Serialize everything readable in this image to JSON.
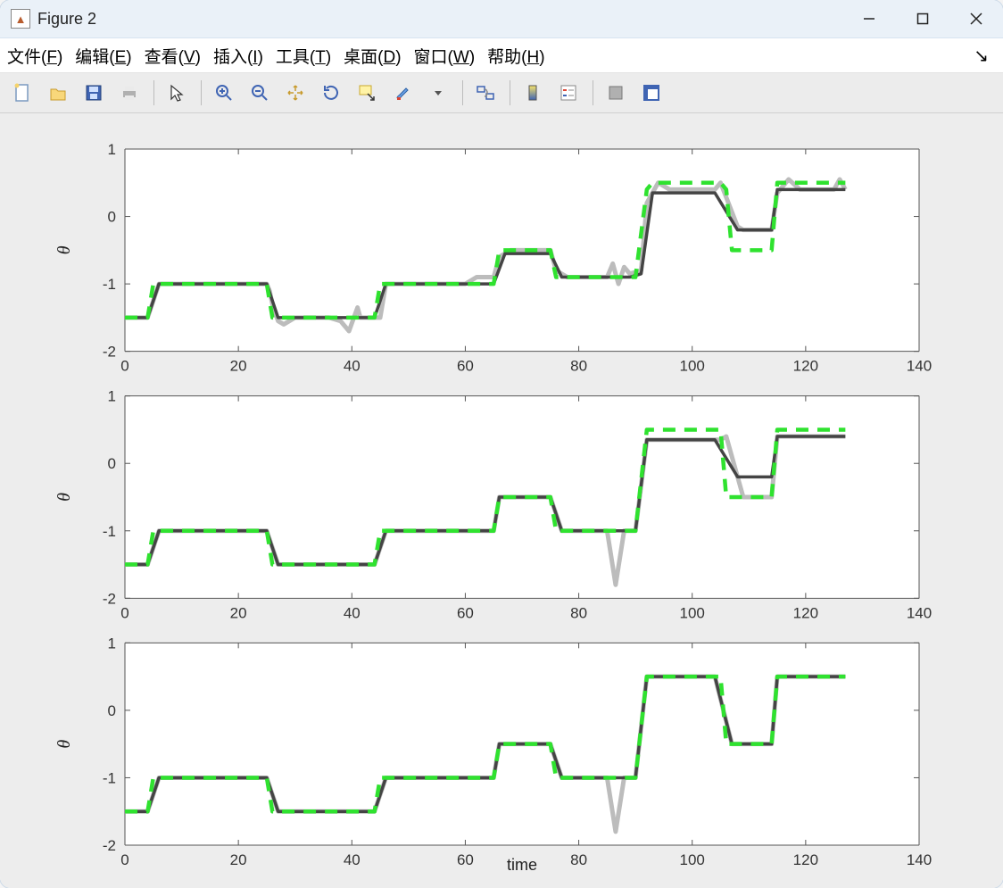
{
  "window": {
    "title": "Figure 2"
  },
  "menu": {
    "file": "文件(F)",
    "edit": "编辑(E)",
    "view": "查看(V)",
    "insert": "插入(I)",
    "tools": "工具(T)",
    "desktop": "桌面(D)",
    "window": "窗口(W)",
    "help": "帮助(H)"
  },
  "toolbar": {
    "new": "new-file-icon",
    "open": "open-folder-icon",
    "save": "save-icon",
    "print": "print-icon",
    "pointer": "pointer-icon",
    "zoomin": "zoom-in-icon",
    "zoomout": "zoom-out-icon",
    "pan": "pan-icon",
    "rotate": "rotate-icon",
    "datacursor": "data-cursor-icon",
    "brush": "brush-icon",
    "link": "link-icon",
    "colorbar": "colorbar-icon",
    "legend": "legend-icon",
    "dock": "dock-icon",
    "undock": "undock-icon"
  },
  "plot": {
    "xlabel": "time",
    "ylabel": "θ",
    "xlim": [
      0,
      140
    ],
    "ylim": [
      -2,
      1
    ],
    "xticks": [
      0,
      20,
      40,
      60,
      80,
      100,
      120,
      140
    ],
    "yticks": [
      -2,
      -1,
      0,
      1
    ],
    "colors": {
      "green": "#2fe22f",
      "dark": "#444444",
      "light": "#bcbcbc",
      "bg": "#ffffff",
      "panel_bg": "#ededed"
    },
    "dash": "14 10",
    "subplots": [
      {
        "series_light": [
          [
            0,
            -1.5
          ],
          [
            4,
            -1.5
          ],
          [
            6,
            -1.0
          ],
          [
            25,
            -1.0
          ],
          [
            25.5,
            -1.1
          ],
          [
            26,
            -1.3
          ],
          [
            27,
            -1.55
          ],
          [
            28,
            -1.6
          ],
          [
            30,
            -1.5
          ],
          [
            36,
            -1.5
          ],
          [
            38,
            -1.55
          ],
          [
            39.5,
            -1.7
          ],
          [
            41,
            -1.35
          ],
          [
            41.5,
            -1.5
          ],
          [
            45,
            -1.5
          ],
          [
            46,
            -1.0
          ],
          [
            60,
            -1.0
          ],
          [
            62,
            -0.9
          ],
          [
            65,
            -0.9
          ],
          [
            66,
            -0.6
          ],
          [
            68,
            -0.5
          ],
          [
            75,
            -0.5
          ],
          [
            76,
            -0.8
          ],
          [
            78,
            -0.9
          ],
          [
            85,
            -0.9
          ],
          [
            86,
            -0.7
          ],
          [
            87,
            -1.0
          ],
          [
            88,
            -0.75
          ],
          [
            89,
            -0.85
          ],
          [
            91,
            -0.8
          ],
          [
            92,
            0.2
          ],
          [
            93,
            0.35
          ],
          [
            94,
            0.5
          ],
          [
            96,
            0.4
          ],
          [
            104,
            0.4
          ],
          [
            105,
            0.5
          ],
          [
            108,
            -0.15
          ],
          [
            109,
            -0.2
          ],
          [
            114,
            -0.2
          ],
          [
            115,
            0.35
          ],
          [
            117,
            0.55
          ],
          [
            119,
            0.4
          ],
          [
            125,
            0.4
          ],
          [
            126,
            0.55
          ],
          [
            127,
            0.4
          ]
        ],
        "series_dark": [
          [
            0,
            -1.5
          ],
          [
            4,
            -1.5
          ],
          [
            6,
            -1.0
          ],
          [
            25,
            -1.0
          ],
          [
            27,
            -1.5
          ],
          [
            44,
            -1.5
          ],
          [
            46,
            -1.0
          ],
          [
            65,
            -1.0
          ],
          [
            67,
            -0.55
          ],
          [
            75,
            -0.55
          ],
          [
            77,
            -0.9
          ],
          [
            89,
            -0.9
          ],
          [
            91,
            -0.85
          ],
          [
            93,
            0.35
          ],
          [
            104,
            0.35
          ],
          [
            108,
            -0.2
          ],
          [
            114,
            -0.2
          ],
          [
            115,
            0.4
          ],
          [
            127,
            0.4
          ]
        ],
        "series_green": [
          [
            0,
            -1.5
          ],
          [
            4,
            -1.5
          ],
          [
            5,
            -1.0
          ],
          [
            25,
            -1.0
          ],
          [
            26,
            -1.5
          ],
          [
            44,
            -1.5
          ],
          [
            45,
            -1.0
          ],
          [
            65,
            -1.0
          ],
          [
            66,
            -0.5
          ],
          [
            75,
            -0.5
          ],
          [
            76,
            -0.9
          ],
          [
            90,
            -0.9
          ],
          [
            92,
            0.4
          ],
          [
            93,
            0.5
          ],
          [
            105,
            0.5
          ],
          [
            106,
            0.4
          ],
          [
            107,
            -0.5
          ],
          [
            114,
            -0.5
          ],
          [
            115,
            0.5
          ],
          [
            127,
            0.5
          ]
        ]
      },
      {
        "series_light": [
          [
            0,
            -1.5
          ],
          [
            4,
            -1.5
          ],
          [
            6,
            -1.0
          ],
          [
            25,
            -1.0
          ],
          [
            27,
            -1.5
          ],
          [
            44,
            -1.5
          ],
          [
            46,
            -1.0
          ],
          [
            65,
            -1.0
          ],
          [
            66,
            -0.5
          ],
          [
            75,
            -0.5
          ],
          [
            77,
            -1.0
          ],
          [
            85,
            -1.0
          ],
          [
            86.5,
            -1.8
          ],
          [
            88,
            -1.0
          ],
          [
            90,
            -1.0
          ],
          [
            92,
            0.35
          ],
          [
            105,
            0.35
          ],
          [
            106,
            0.4
          ],
          [
            109,
            -0.5
          ],
          [
            114,
            -0.5
          ],
          [
            115,
            0.4
          ],
          [
            127,
            0.4
          ]
        ],
        "series_dark": [
          [
            0,
            -1.5
          ],
          [
            4,
            -1.5
          ],
          [
            6,
            -1.0
          ],
          [
            25,
            -1.0
          ],
          [
            27,
            -1.5
          ],
          [
            44,
            -1.5
          ],
          [
            46,
            -1.0
          ],
          [
            65,
            -1.0
          ],
          [
            66,
            -0.5
          ],
          [
            75,
            -0.5
          ],
          [
            77,
            -1.0
          ],
          [
            90,
            -1.0
          ],
          [
            92,
            0.35
          ],
          [
            104,
            0.35
          ],
          [
            108,
            -0.2
          ],
          [
            114,
            -0.2
          ],
          [
            115,
            0.4
          ],
          [
            127,
            0.4
          ]
        ],
        "series_green": [
          [
            0,
            -1.5
          ],
          [
            4,
            -1.5
          ],
          [
            5,
            -1.0
          ],
          [
            25,
            -1.0
          ],
          [
            26,
            -1.5
          ],
          [
            44,
            -1.5
          ],
          [
            45,
            -1.0
          ],
          [
            65,
            -1.0
          ],
          [
            66,
            -0.5
          ],
          [
            75,
            -0.5
          ],
          [
            76,
            -1.0
          ],
          [
            90,
            -1.0
          ],
          [
            92,
            0.5
          ],
          [
            105,
            0.5
          ],
          [
            106,
            -0.5
          ],
          [
            114,
            -0.5
          ],
          [
            115,
            0.5
          ],
          [
            127,
            0.5
          ]
        ]
      },
      {
        "series_light": [
          [
            0,
            -1.5
          ],
          [
            4,
            -1.5
          ],
          [
            6,
            -1.0
          ],
          [
            25,
            -1.0
          ],
          [
            27,
            -1.5
          ],
          [
            44,
            -1.5
          ],
          [
            46,
            -1.0
          ],
          [
            65,
            -1.0
          ],
          [
            66,
            -0.5
          ],
          [
            75,
            -0.5
          ],
          [
            77,
            -1.0
          ],
          [
            85,
            -1.0
          ],
          [
            86.5,
            -1.8
          ],
          [
            88,
            -1.0
          ],
          [
            90,
            -1.0
          ],
          [
            92,
            0.5
          ],
          [
            104,
            0.5
          ],
          [
            107,
            -0.5
          ],
          [
            114,
            -0.5
          ],
          [
            115,
            0.5
          ],
          [
            127,
            0.5
          ]
        ],
        "series_dark": [
          [
            0,
            -1.5
          ],
          [
            4,
            -1.5
          ],
          [
            6,
            -1.0
          ],
          [
            25,
            -1.0
          ],
          [
            27,
            -1.5
          ],
          [
            44,
            -1.5
          ],
          [
            46,
            -1.0
          ],
          [
            65,
            -1.0
          ],
          [
            66,
            -0.5
          ],
          [
            75,
            -0.5
          ],
          [
            77,
            -1.0
          ],
          [
            90,
            -1.0
          ],
          [
            92,
            0.5
          ],
          [
            104,
            0.5
          ],
          [
            107,
            -0.5
          ],
          [
            114,
            -0.5
          ],
          [
            115,
            0.5
          ],
          [
            127,
            0.5
          ]
        ],
        "series_green": [
          [
            0,
            -1.5
          ],
          [
            4,
            -1.5
          ],
          [
            5,
            -1.0
          ],
          [
            25,
            -1.0
          ],
          [
            26,
            -1.5
          ],
          [
            44,
            -1.5
          ],
          [
            45,
            -1.0
          ],
          [
            65,
            -1.0
          ],
          [
            66,
            -0.5
          ],
          [
            75,
            -0.5
          ],
          [
            76,
            -1.0
          ],
          [
            90,
            -1.0
          ],
          [
            92,
            0.5
          ],
          [
            105,
            0.5
          ],
          [
            106,
            -0.5
          ],
          [
            114,
            -0.5
          ],
          [
            115,
            0.5
          ],
          [
            127,
            0.5
          ]
        ]
      }
    ]
  }
}
